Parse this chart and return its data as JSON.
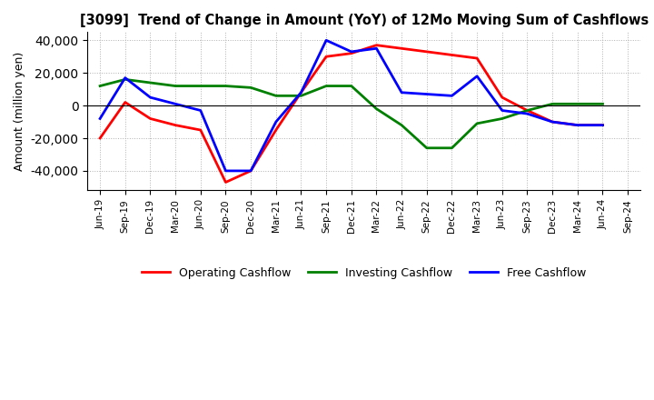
{
  "title": "[3099]  Trend of Change in Amount (YoY) of 12Mo Moving Sum of Cashflows",
  "ylabel": "Amount (million yen)",
  "x_labels": [
    "Jun-19",
    "Sep-19",
    "Dec-19",
    "Mar-20",
    "Jun-20",
    "Sep-20",
    "Dec-20",
    "Mar-21",
    "Jun-21",
    "Sep-21",
    "Dec-21",
    "Mar-22",
    "Jun-22",
    "Sep-22",
    "Dec-22",
    "Mar-23",
    "Jun-23",
    "Sep-23",
    "Dec-23",
    "Mar-24",
    "Jun-24",
    "Sep-24"
  ],
  "operating": [
    -20000,
    2000,
    -8000,
    -12000,
    -15000,
    -47000,
    -40000,
    -15000,
    8000,
    30000,
    32000,
    37000,
    35000,
    33000,
    31000,
    29000,
    5000,
    -3000,
    -10000,
    -12000,
    -12000,
    null
  ],
  "investing": [
    12000,
    16000,
    14000,
    12000,
    12000,
    12000,
    11000,
    6000,
    6000,
    12000,
    12000,
    -2000,
    -12000,
    -26000,
    -26000,
    -11000,
    -8000,
    -3000,
    1000,
    1000,
    1000,
    null
  ],
  "free": [
    -8000,
    17000,
    5000,
    1000,
    -3000,
    -40000,
    -40000,
    -10000,
    8000,
    40000,
    33000,
    35000,
    8000,
    7000,
    6000,
    18000,
    -3000,
    -5000,
    -10000,
    -12000,
    -12000,
    null
  ],
  "ylim": [
    -52000,
    45000
  ],
  "yticks": [
    -40000,
    -20000,
    0,
    20000,
    40000
  ],
  "operating_color": "#ff0000",
  "investing_color": "#008000",
  "free_color": "#0000ff",
  "line_width": 2.0,
  "background_color": "#ffffff",
  "grid_color": "#b0b0b0"
}
